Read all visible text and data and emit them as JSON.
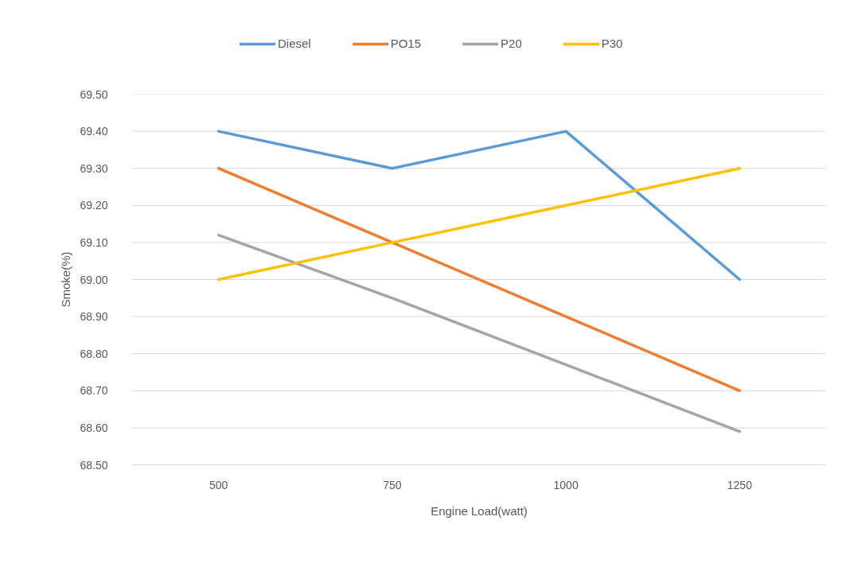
{
  "chart_data": {
    "type": "line",
    "xlabel": "Engine Load(watt)",
    "ylabel": "Smoke(%)",
    "categories": [
      "500",
      "750",
      "1000",
      "1250"
    ],
    "ylim": [
      68.5,
      69.5
    ],
    "yticks": [
      {
        "value": 68.5,
        "label": "68.50"
      },
      {
        "value": 68.6,
        "label": "68.60"
      },
      {
        "value": 68.7,
        "label": "68.70"
      },
      {
        "value": 68.8,
        "label": "68.80"
      },
      {
        "value": 68.9,
        "label": "68.90"
      },
      {
        "value": 69.0,
        "label": "69.00"
      },
      {
        "value": 69.1,
        "label": "69.10"
      },
      {
        "value": 69.2,
        "label": "69.20"
      },
      {
        "value": 69.3,
        "label": "69.30"
      },
      {
        "value": 69.4,
        "label": "69.40"
      },
      {
        "value": 69.5,
        "label": "69.50"
      }
    ],
    "grid": "y",
    "legend": "top",
    "line_style": "solid",
    "series": [
      {
        "name": "Diesel",
        "color": "#5b9bd5",
        "values": [
          69.4,
          69.3,
          69.4,
          69.0
        ]
      },
      {
        "name": "PO15",
        "color": "#ed7d31",
        "values": [
          69.3,
          69.1,
          68.9,
          68.7
        ]
      },
      {
        "name": "P20",
        "color": "#a5a5a5",
        "values": [
          69.12,
          68.95,
          68.77,
          68.59
        ]
      },
      {
        "name": "P30",
        "color": "#ffc000",
        "values": [
          69.0,
          69.1,
          69.2,
          69.3
        ]
      }
    ]
  }
}
